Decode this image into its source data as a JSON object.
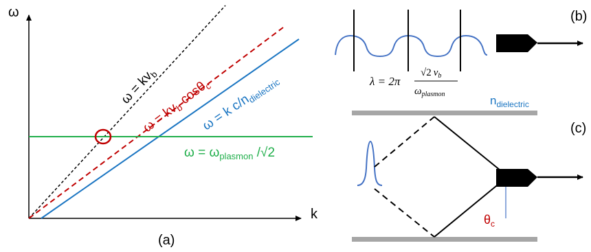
{
  "colors": {
    "black": "#000000",
    "red": "#c00000",
    "blue": "#1a75c2",
    "green": "#1fae4a",
    "gray": "#a6a6a6",
    "wave": "#4472c4"
  },
  "panel_a": {
    "y_axis_label": "ω",
    "x_axis_label": "k",
    "caption": "(a)",
    "line_black": {
      "main": "ω = kv",
      "sub": "b"
    },
    "line_red": {
      "main": "ω = kv",
      "sub": "b",
      "tail": " cosθ",
      "sub2": "c"
    },
    "line_blue": {
      "main": "ω = k c/n",
      "sub": "dielectric"
    },
    "line_green": {
      "main": "ω = ω",
      "sub": "plasmon",
      "tail": " /√2"
    }
  },
  "panel_b": {
    "caption": "(b)",
    "formula": {
      "lhs": "λ = 2π",
      "num_root": "√2",
      "num_var": "v",
      "num_sub": "b",
      "den_var": "ω",
      "den_sub": "plasmon"
    },
    "n_label_main": "n",
    "n_label_sub": "dielectric"
  },
  "panel_c": {
    "caption": "(c)",
    "theta_main": "θ",
    "theta_sub": "c"
  }
}
